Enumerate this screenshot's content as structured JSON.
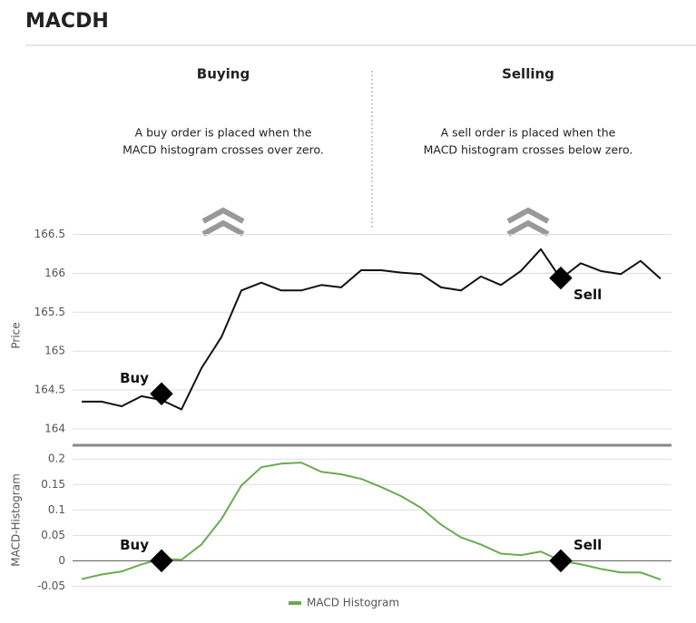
{
  "title": "MACDH",
  "columns": [
    {
      "heading": "Buying",
      "lines": [
        "A buy order is placed when the",
        "MACD histogram crosses over zero."
      ]
    },
    {
      "heading": "Selling",
      "lines": [
        "A sell order is placed when the",
        "MACD histogram crosses below zero."
      ]
    }
  ],
  "chart_data": [
    {
      "type": "line",
      "ylabel": "Price",
      "color": "#111111",
      "grid": true,
      "ylim": [
        163.8,
        166.6
      ],
      "yticks": [
        164,
        164.5,
        165,
        165.5,
        166,
        166.5
      ],
      "values": [
        164.35,
        164.35,
        164.29,
        164.42,
        164.37,
        164.25,
        164.78,
        165.18,
        165.78,
        165.88,
        165.78,
        165.78,
        165.85,
        165.82,
        166.04,
        166.04,
        166.01,
        165.99,
        165.82,
        165.78,
        165.96,
        165.85,
        166.03,
        166.31,
        165.93,
        166.13,
        166.03,
        165.99,
        166.16,
        165.93
      ],
      "markers": [
        {
          "label": "Buy",
          "index": 4,
          "value": 164.45
        },
        {
          "label": "Sell",
          "index": 24,
          "value": 165.94
        }
      ]
    },
    {
      "type": "line",
      "ylabel": "MACD-Histogram",
      "grid": true,
      "ylim": [
        -0.06,
        0.22
      ],
      "yticks": [
        -0.05,
        0,
        0.05,
        0.1,
        0.15,
        0.2
      ],
      "series": [
        {
          "name": "MACD Histogram",
          "color": "#6aaa50",
          "values": [
            -0.036,
            -0.027,
            -0.021,
            -0.007,
            0.004,
            0.002,
            0.032,
            0.082,
            0.148,
            0.184,
            0.191,
            0.193,
            0.175,
            0.17,
            0.161,
            0.145,
            0.127,
            0.104,
            0.071,
            0.046,
            0.032,
            0.014,
            0.011,
            0.018,
            0,
            -0.007,
            -0.016,
            -0.023,
            -0.023,
            -0.037
          ]
        }
      ],
      "markers": [
        {
          "label": "Buy",
          "index": 4,
          "value": 0
        },
        {
          "label": "Sell",
          "index": 24,
          "value": 0
        }
      ]
    }
  ]
}
